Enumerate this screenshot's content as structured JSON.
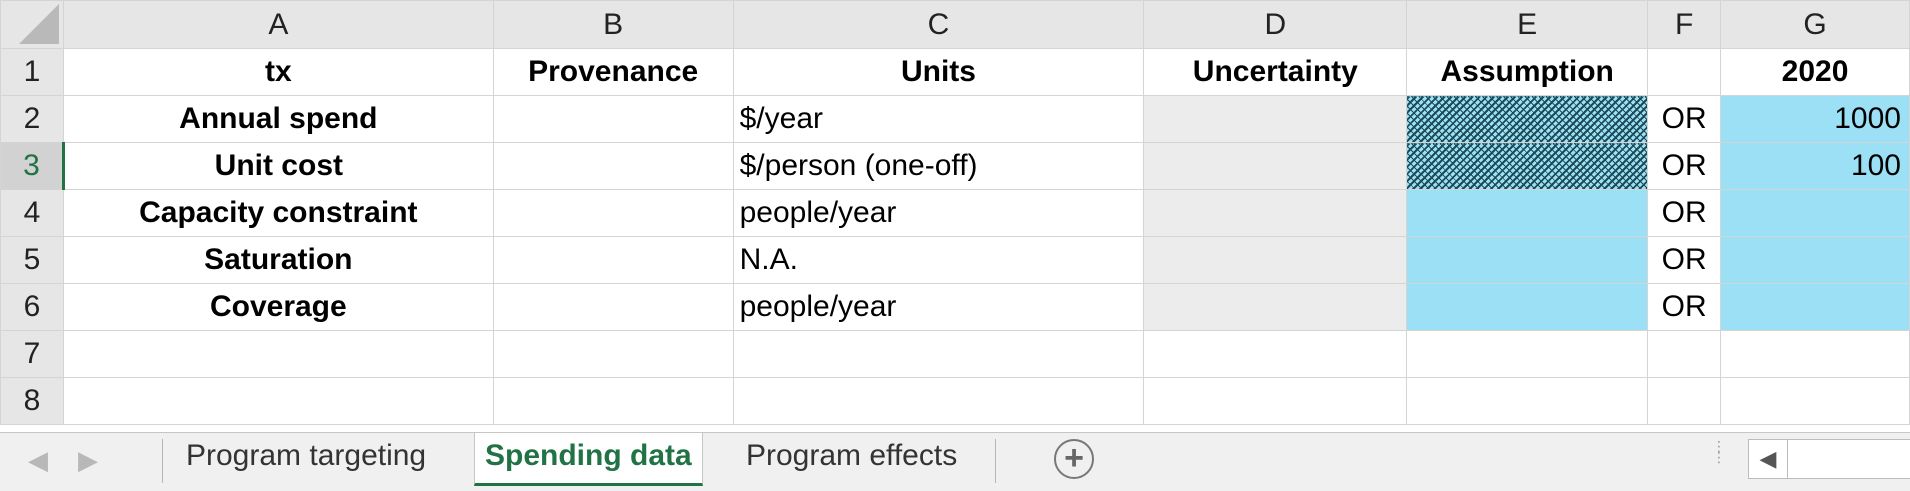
{
  "columns": [
    "A",
    "B",
    "C",
    "D",
    "E",
    "F",
    "G"
  ],
  "rows": [
    {
      "num": "1",
      "A": "tx",
      "B": "Provenance",
      "C": "Units",
      "D": "Uncertainty",
      "E": "Assumption",
      "F": "",
      "G": "2020"
    },
    {
      "num": "2",
      "A": "Annual spend",
      "B": "",
      "C": "$/year",
      "D": "",
      "E": "",
      "F": "OR",
      "G": "1000"
    },
    {
      "num": "3",
      "A": "Unit cost",
      "B": "",
      "C": "$/person (one-off)",
      "D": "",
      "E": "",
      "F": "OR",
      "G": "100"
    },
    {
      "num": "4",
      "A": "Capacity constraint",
      "B": "",
      "C": "people/year",
      "D": "",
      "E": "",
      "F": "OR",
      "G": ""
    },
    {
      "num": "5",
      "A": "Saturation",
      "B": "",
      "C": "N.A.",
      "D": "",
      "E": "",
      "F": "OR",
      "G": ""
    },
    {
      "num": "6",
      "A": "Coverage",
      "B": "",
      "C": "people/year",
      "D": "",
      "E": "",
      "F": "OR",
      "G": ""
    },
    {
      "num": "7",
      "A": "",
      "B": "",
      "C": "",
      "D": "",
      "E": "",
      "F": "",
      "G": ""
    },
    {
      "num": "8",
      "A": "",
      "B": "",
      "C": "",
      "D": "",
      "E": "",
      "F": "",
      "G": ""
    }
  ],
  "selected_row": "3",
  "sheet_tabs": [
    {
      "label": "Program targeting",
      "active": false
    },
    {
      "label": "Spending data",
      "active": true
    },
    {
      "label": "Program effects",
      "active": false
    }
  ],
  "icons": {
    "nav_prev": "triangle-left-icon",
    "nav_next": "triangle-right-icon",
    "add_sheet": "plus-circle-icon",
    "scroll_left": "triangle-left-icon"
  },
  "colors": {
    "accent": "#217346",
    "input_cell": "#9be0f5",
    "disabled_cell": "#ececec"
  }
}
